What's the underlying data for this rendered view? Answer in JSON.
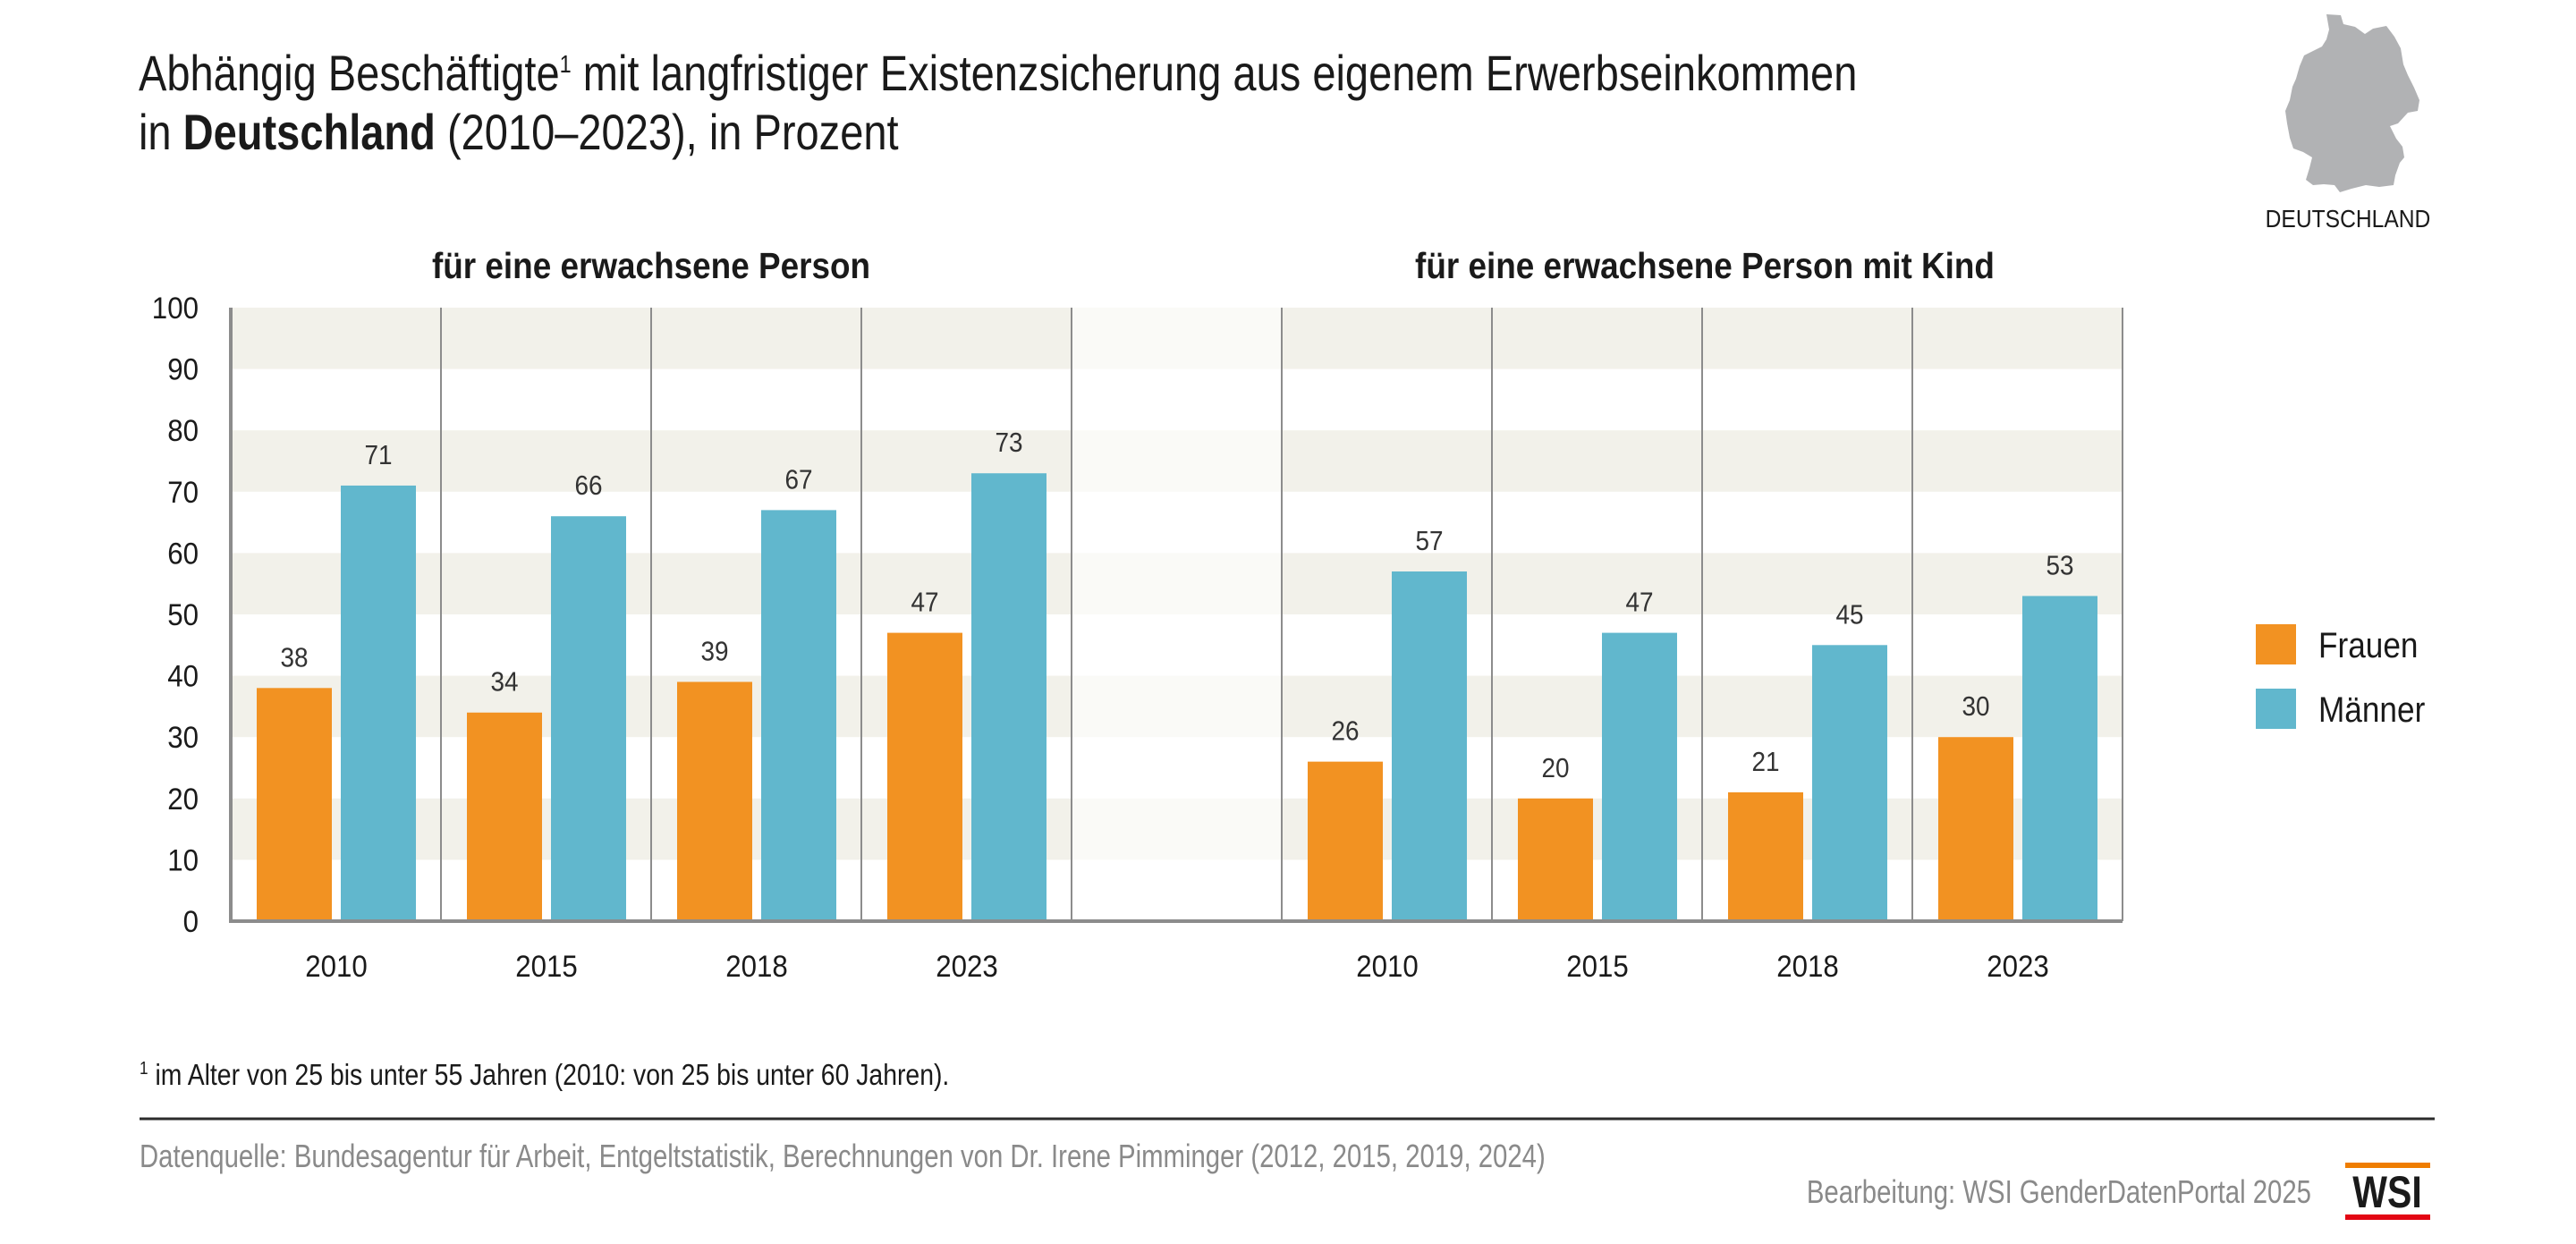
{
  "header": {
    "title_line1_a": "Abhängig Beschäftigte",
    "title_sup": "1",
    "title_line1_b": " mit langfristiger Existenzsicherung aus eigenem Erwerbseinkommen",
    "title_line2_a": "in ",
    "title_line2_bold": "Deutschland",
    "title_line2_b": " (2010–2023), in Prozent",
    "map_icon": "germany-map-icon",
    "map_caption": "DEUTSCHLAND"
  },
  "colors": {
    "frauen": "#f29222",
    "maenner": "#61b7cd",
    "band": "#f2f1ea",
    "band_gap": "#fafaf7",
    "axis": "#8c8c8c",
    "map": "#b1b2b4",
    "wsi_orange": "#ef7d00",
    "wsi_red": "#e30613"
  },
  "chart_data": {
    "type": "bar",
    "title": "Abhängig Beschäftigte mit langfristiger Existenzsicherung aus eigenem Erwerbseinkommen in Deutschland (2010–2023), in Prozent",
    "ylabel": "",
    "xlabel": "",
    "ylim": [
      0,
      100
    ],
    "yticks": [
      "0",
      "10",
      "20",
      "30",
      "40",
      "50",
      "60",
      "70",
      "80",
      "90",
      "100"
    ],
    "grid": "alternating horizontal bands",
    "legend_position": "right",
    "legend": [
      "Frauen",
      "Männer"
    ],
    "panels": [
      {
        "title": "für eine erwachsene Person",
        "categories": [
          "2010",
          "2015",
          "2018",
          "2023"
        ],
        "series": [
          {
            "name": "Frauen",
            "values": [
              38,
              34,
              39,
              47
            ]
          },
          {
            "name": "Männer",
            "values": [
              71,
              66,
              67,
              73
            ]
          }
        ]
      },
      {
        "title": "für eine erwachsene Person mit Kind",
        "categories": [
          "2010",
          "2015",
          "2018",
          "2023"
        ],
        "series": [
          {
            "name": "Frauen",
            "values": [
              26,
              20,
              21,
              30
            ]
          },
          {
            "name": "Männer",
            "values": [
              57,
              47,
              45,
              53
            ]
          }
        ]
      }
    ]
  },
  "footer": {
    "footnote_sup": "1",
    "footnote": " im Alter von 25 bis unter 55 Jahren  (2010: von 25 bis unter 60 Jahren).",
    "source": "Datenquelle: Bundesagentur für Arbeit, Entgeltstatistik, Berechnungen von Dr. Irene Pimminger (2012, 2015, 2019, 2024)",
    "credit": "Bearbeitung: WSI GenderDatenPortal 2025",
    "logo": "WSI"
  }
}
